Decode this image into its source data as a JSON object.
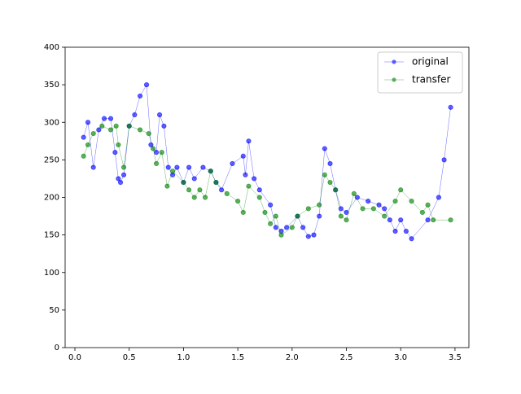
{
  "chart_data": {
    "type": "line",
    "series": [
      {
        "name": "original",
        "color": "#0000ff",
        "x": [
          0.08,
          0.12,
          0.17,
          0.22,
          0.27,
          0.33,
          0.37,
          0.4,
          0.42,
          0.45,
          0.5,
          0.55,
          0.6,
          0.66,
          0.7,
          0.75,
          0.78,
          0.82,
          0.86,
          0.9,
          0.94,
          1.0,
          1.05,
          1.1,
          1.18,
          1.25,
          1.3,
          1.35,
          1.45,
          1.55,
          1.57,
          1.6,
          1.65,
          1.7,
          1.8,
          1.85,
          1.9,
          1.95,
          2.05,
          2.1,
          2.15,
          2.2,
          2.25,
          2.3,
          2.35,
          2.4,
          2.45,
          2.5,
          2.6,
          2.7,
          2.8,
          2.85,
          2.9,
          2.95,
          3.0,
          3.05,
          3.1,
          3.25,
          3.35,
          3.4,
          3.46
        ],
        "values": [
          280,
          300,
          240,
          290,
          305,
          305,
          260,
          225,
          220,
          230,
          295,
          310,
          335,
          350,
          270,
          260,
          310,
          295,
          240,
          230,
          240,
          220,
          240,
          225,
          240,
          235,
          220,
          210,
          245,
          255,
          230,
          275,
          225,
          210,
          190,
          160,
          155,
          160,
          175,
          160,
          148,
          150,
          175,
          265,
          245,
          210,
          185,
          180,
          200,
          195,
          190,
          185,
          170,
          155,
          170,
          155,
          145,
          170,
          200,
          250,
          320
        ]
      },
      {
        "name": "transfer",
        "color": "#008000",
        "x": [
          0.08,
          0.12,
          0.17,
          0.25,
          0.33,
          0.38,
          0.4,
          0.45,
          0.5,
          0.6,
          0.68,
          0.72,
          0.75,
          0.8,
          0.85,
          0.9,
          1.0,
          1.05,
          1.1,
          1.15,
          1.2,
          1.25,
          1.3,
          1.4,
          1.5,
          1.55,
          1.6,
          1.7,
          1.75,
          1.8,
          1.85,
          1.9,
          2.0,
          2.05,
          2.15,
          2.25,
          2.3,
          2.35,
          2.4,
          2.45,
          2.5,
          2.57,
          2.65,
          2.75,
          2.85,
          2.95,
          3.0,
          3.1,
          3.2,
          3.25,
          3.3,
          3.46
        ],
        "values": [
          255,
          270,
          285,
          295,
          290,
          295,
          270,
          240,
          295,
          290,
          285,
          265,
          245,
          260,
          215,
          235,
          220,
          210,
          200,
          210,
          200,
          235,
          220,
          205,
          195,
          180,
          215,
          200,
          180,
          165,
          175,
          150,
          160,
          175,
          185,
          190,
          230,
          220,
          210,
          175,
          170,
          205,
          185,
          185,
          175,
          195,
          210,
          195,
          180,
          190,
          170,
          170
        ]
      }
    ],
    "xlim": [
      -0.09,
      3.628
    ],
    "ylim": [
      0,
      400
    ],
    "xticks": [
      {
        "value": 0,
        "label": "0.0"
      },
      0.5,
      {
        "value": 1,
        "label": "1.0"
      },
      1.5,
      {
        "value": 2,
        "label": "2.0"
      },
      2.5,
      {
        "value": 3,
        "label": "3.0"
      },
      3.5
    ],
    "yticks": [
      0,
      50,
      100,
      150,
      200,
      250,
      300,
      350,
      400
    ],
    "legend": "upper right"
  }
}
